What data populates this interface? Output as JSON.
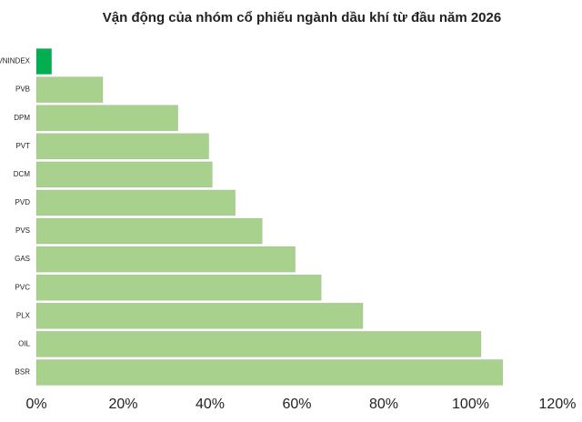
{
  "chart_data": {
    "type": "barh",
    "title": "Vận động của nhóm cổ phiếu ngành dầu khí từ đầu năm 2026",
    "categories": [
      "VNINDEX",
      "PVB",
      "DPM",
      "PVT",
      "DCM",
      "PVD",
      "PVS",
      "GAS",
      "PVC",
      "PLX",
      "OIL",
      "BSR"
    ],
    "values": [
      3.5,
      15.3,
      32.6,
      39.7,
      40.5,
      45.8,
      52.0,
      59.6,
      65.6,
      75.2,
      102.4,
      107.4
    ],
    "colors": [
      "#00b050",
      "#a9d18e",
      "#a9d18e",
      "#a9d18e",
      "#a9d18e",
      "#a9d18e",
      "#a9d18e",
      "#a9d18e",
      "#a9d18e",
      "#a9d18e",
      "#a9d18e",
      "#a9d18e"
    ],
    "xlim": [
      0,
      120
    ],
    "xticks": [
      {
        "value": 0,
        "label": "0%"
      },
      {
        "value": 20,
        "label": "20%"
      },
      {
        "value": 40,
        "label": "40%"
      },
      {
        "value": 60,
        "label": "60%"
      },
      {
        "value": 80,
        "label": "80%"
      },
      {
        "value": 100,
        "label": "100%"
      },
      {
        "value": 120,
        "label": "120%"
      }
    ],
    "grid": false
  }
}
